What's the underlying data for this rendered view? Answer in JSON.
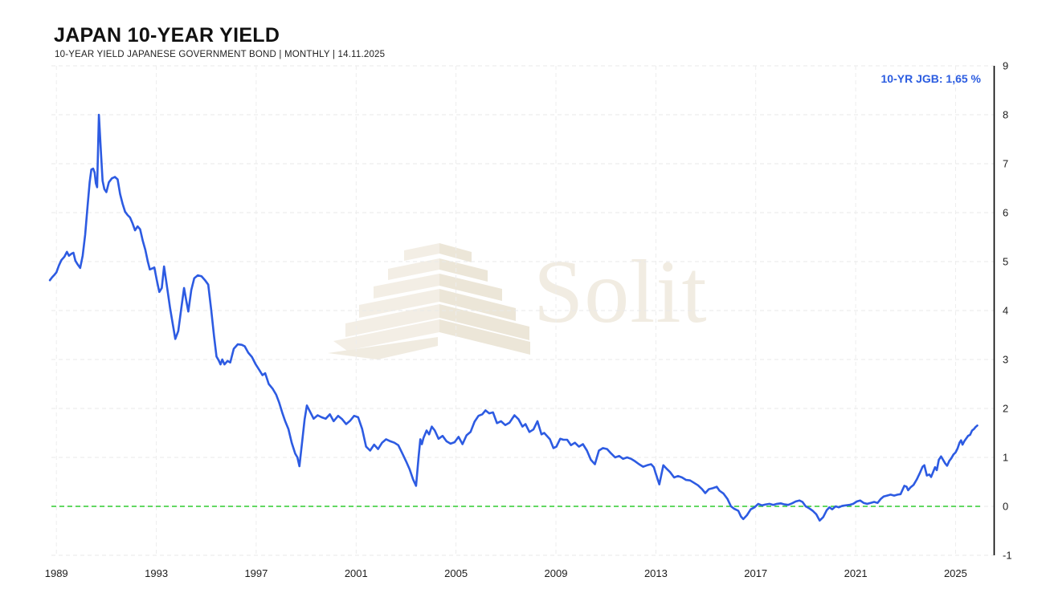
{
  "header": {
    "title": "JAPAN 10-YEAR YIELD",
    "subtitle": "10-YEAR YIELD JAPANESE GOVERNMENT BOND | MONTHLY | 14.11.2025"
  },
  "watermark": {
    "text": "Solit"
  },
  "chart": {
    "legend_label": "10-YR JGB: 1,65 %"
  },
  "chart_data": {
    "type": "line",
    "title": "JAPAN 10-YEAR YIELD",
    "subtitle": "10-YEAR YIELD JAPANESE GOVERNMENT BOND | MONTHLY | 14.11.2025",
    "xlabel": "",
    "ylabel": "",
    "x_ticks": [
      1989,
      1993,
      1997,
      2001,
      2005,
      2009,
      2013,
      2017,
      2021,
      2025
    ],
    "y_ticks": [
      9,
      8,
      7,
      6,
      5,
      4,
      3,
      2,
      1,
      0,
      -1
    ],
    "xlim": [
      1988.8,
      2026.53
    ],
    "ylim": [
      -1,
      9
    ],
    "grid": "dashed",
    "legend_position": "top-right",
    "zero_line": {
      "value": 0,
      "style": "dashed",
      "color": "#2ecc2e"
    },
    "series": [
      {
        "name": "10-YR JGB",
        "last_value": "1,65 %",
        "color": "#2d5be2",
        "points": [
          [
            1988.74,
            4.62
          ],
          [
            1988.83,
            4.68
          ],
          [
            1988.92,
            4.73
          ],
          [
            1989.0,
            4.78
          ],
          [
            1989.1,
            4.92
          ],
          [
            1989.2,
            5.03
          ],
          [
            1989.32,
            5.1
          ],
          [
            1989.42,
            5.2
          ],
          [
            1989.5,
            5.12
          ],
          [
            1989.6,
            5.16
          ],
          [
            1989.68,
            5.18
          ],
          [
            1989.76,
            5.02
          ],
          [
            1989.84,
            4.95
          ],
          [
            1989.95,
            4.87
          ],
          [
            1990.05,
            5.12
          ],
          [
            1990.15,
            5.55
          ],
          [
            1990.25,
            6.15
          ],
          [
            1990.33,
            6.62
          ],
          [
            1990.4,
            6.88
          ],
          [
            1990.47,
            6.9
          ],
          [
            1990.53,
            6.82
          ],
          [
            1990.58,
            6.6
          ],
          [
            1990.63,
            6.52
          ],
          [
            1990.7,
            8.0
          ],
          [
            1990.78,
            7.25
          ],
          [
            1990.85,
            6.65
          ],
          [
            1990.92,
            6.48
          ],
          [
            1991.0,
            6.42
          ],
          [
            1991.1,
            6.62
          ],
          [
            1991.22,
            6.7
          ],
          [
            1991.34,
            6.73
          ],
          [
            1991.45,
            6.68
          ],
          [
            1991.55,
            6.38
          ],
          [
            1991.65,
            6.18
          ],
          [
            1991.75,
            6.02
          ],
          [
            1991.85,
            5.95
          ],
          [
            1991.95,
            5.9
          ],
          [
            1992.05,
            5.78
          ],
          [
            1992.15,
            5.64
          ],
          [
            1992.25,
            5.72
          ],
          [
            1992.35,
            5.66
          ],
          [
            1992.46,
            5.42
          ],
          [
            1992.56,
            5.24
          ],
          [
            1992.66,
            5.0
          ],
          [
            1992.74,
            4.84
          ],
          [
            1992.84,
            4.86
          ],
          [
            1992.92,
            4.88
          ],
          [
            1993.02,
            4.62
          ],
          [
            1993.12,
            4.38
          ],
          [
            1993.22,
            4.46
          ],
          [
            1993.31,
            4.9
          ],
          [
            1993.42,
            4.52
          ],
          [
            1993.55,
            4.05
          ],
          [
            1993.66,
            3.72
          ],
          [
            1993.76,
            3.42
          ],
          [
            1993.88,
            3.58
          ],
          [
            1994.0,
            4.05
          ],
          [
            1994.11,
            4.46
          ],
          [
            1994.2,
            4.2
          ],
          [
            1994.28,
            3.98
          ],
          [
            1994.4,
            4.42
          ],
          [
            1994.52,
            4.66
          ],
          [
            1994.66,
            4.72
          ],
          [
            1994.81,
            4.7
          ],
          [
            1994.95,
            4.62
          ],
          [
            1995.08,
            4.53
          ],
          [
            1995.2,
            4.0
          ],
          [
            1995.31,
            3.48
          ],
          [
            1995.41,
            3.06
          ],
          [
            1995.5,
            2.98
          ],
          [
            1995.57,
            2.9
          ],
          [
            1995.64,
            3.0
          ],
          [
            1995.73,
            2.9
          ],
          [
            1995.85,
            2.97
          ],
          [
            1995.96,
            2.94
          ],
          [
            1996.1,
            3.22
          ],
          [
            1996.26,
            3.31
          ],
          [
            1996.42,
            3.3
          ],
          [
            1996.54,
            3.27
          ],
          [
            1996.68,
            3.14
          ],
          [
            1996.83,
            3.05
          ],
          [
            1996.98,
            2.9
          ],
          [
            1997.13,
            2.78
          ],
          [
            1997.25,
            2.68
          ],
          [
            1997.36,
            2.72
          ],
          [
            1997.5,
            2.5
          ],
          [
            1997.66,
            2.4
          ],
          [
            1997.8,
            2.28
          ],
          [
            1997.92,
            2.12
          ],
          [
            1998.05,
            1.9
          ],
          [
            1998.16,
            1.74
          ],
          [
            1998.29,
            1.58
          ],
          [
            1998.42,
            1.3
          ],
          [
            1998.56,
            1.08
          ],
          [
            1998.65,
            1.0
          ],
          [
            1998.73,
            0.82
          ],
          [
            1998.84,
            1.32
          ],
          [
            1998.94,
            1.78
          ],
          [
            1999.03,
            2.06
          ],
          [
            1999.16,
            1.93
          ],
          [
            1999.3,
            1.79
          ],
          [
            1999.46,
            1.86
          ],
          [
            1999.62,
            1.82
          ],
          [
            1999.78,
            1.79
          ],
          [
            1999.95,
            1.88
          ],
          [
            2000.1,
            1.74
          ],
          [
            2000.28,
            1.85
          ],
          [
            2000.44,
            1.78
          ],
          [
            2000.6,
            1.68
          ],
          [
            2000.76,
            1.75
          ],
          [
            2000.92,
            1.85
          ],
          [
            2001.08,
            1.82
          ],
          [
            2001.24,
            1.58
          ],
          [
            2001.4,
            1.22
          ],
          [
            2001.56,
            1.14
          ],
          [
            2001.72,
            1.26
          ],
          [
            2001.88,
            1.17
          ],
          [
            2002.04,
            1.3
          ],
          [
            2002.2,
            1.37
          ],
          [
            2002.37,
            1.33
          ],
          [
            2002.53,
            1.3
          ],
          [
            2002.69,
            1.25
          ],
          [
            2002.85,
            1.08
          ],
          [
            2003.0,
            0.92
          ],
          [
            2003.14,
            0.76
          ],
          [
            2003.28,
            0.55
          ],
          [
            2003.4,
            0.42
          ],
          [
            2003.5,
            1.0
          ],
          [
            2003.57,
            1.37
          ],
          [
            2003.63,
            1.27
          ],
          [
            2003.7,
            1.4
          ],
          [
            2003.82,
            1.55
          ],
          [
            2003.92,
            1.47
          ],
          [
            2004.03,
            1.63
          ],
          [
            2004.15,
            1.55
          ],
          [
            2004.3,
            1.38
          ],
          [
            2004.46,
            1.44
          ],
          [
            2004.62,
            1.33
          ],
          [
            2004.78,
            1.28
          ],
          [
            2004.94,
            1.31
          ],
          [
            2005.1,
            1.42
          ],
          [
            2005.26,
            1.27
          ],
          [
            2005.42,
            1.45
          ],
          [
            2005.58,
            1.52
          ],
          [
            2005.74,
            1.73
          ],
          [
            2005.9,
            1.85
          ],
          [
            2006.05,
            1.88
          ],
          [
            2006.18,
            1.96
          ],
          [
            2006.33,
            1.9
          ],
          [
            2006.48,
            1.92
          ],
          [
            2006.64,
            1.7
          ],
          [
            2006.8,
            1.74
          ],
          [
            2006.97,
            1.66
          ],
          [
            2007.14,
            1.71
          ],
          [
            2007.34,
            1.86
          ],
          [
            2007.5,
            1.78
          ],
          [
            2007.66,
            1.63
          ],
          [
            2007.78,
            1.68
          ],
          [
            2007.94,
            1.52
          ],
          [
            2008.1,
            1.57
          ],
          [
            2008.26,
            1.74
          ],
          [
            2008.42,
            1.47
          ],
          [
            2008.53,
            1.5
          ],
          [
            2008.64,
            1.44
          ],
          [
            2008.76,
            1.37
          ],
          [
            2008.9,
            1.19
          ],
          [
            2009.02,
            1.22
          ],
          [
            2009.17,
            1.38
          ],
          [
            2009.3,
            1.36
          ],
          [
            2009.45,
            1.36
          ],
          [
            2009.6,
            1.25
          ],
          [
            2009.76,
            1.3
          ],
          [
            2009.92,
            1.22
          ],
          [
            2010.08,
            1.27
          ],
          [
            2010.24,
            1.14
          ],
          [
            2010.4,
            0.95
          ],
          [
            2010.56,
            0.86
          ],
          [
            2010.72,
            1.14
          ],
          [
            2010.88,
            1.19
          ],
          [
            2011.05,
            1.17
          ],
          [
            2011.21,
            1.08
          ],
          [
            2011.37,
            1.0
          ],
          [
            2011.53,
            1.03
          ],
          [
            2011.69,
            0.97
          ],
          [
            2011.85,
            1.0
          ],
          [
            2012.01,
            0.97
          ],
          [
            2012.17,
            0.92
          ],
          [
            2012.33,
            0.86
          ],
          [
            2012.49,
            0.81
          ],
          [
            2012.65,
            0.84
          ],
          [
            2012.81,
            0.86
          ],
          [
            2012.92,
            0.8
          ],
          [
            2012.98,
            0.7
          ],
          [
            2013.14,
            0.45
          ],
          [
            2013.3,
            0.84
          ],
          [
            2013.41,
            0.78
          ],
          [
            2013.57,
            0.7
          ],
          [
            2013.73,
            0.59
          ],
          [
            2013.89,
            0.62
          ],
          [
            2014.05,
            0.59
          ],
          [
            2014.21,
            0.54
          ],
          [
            2014.37,
            0.53
          ],
          [
            2014.53,
            0.48
          ],
          [
            2014.69,
            0.43
          ],
          [
            2014.85,
            0.35
          ],
          [
            2014.98,
            0.27
          ],
          [
            2015.12,
            0.35
          ],
          [
            2015.28,
            0.37
          ],
          [
            2015.44,
            0.4
          ],
          [
            2015.55,
            0.32
          ],
          [
            2015.71,
            0.26
          ],
          [
            2015.87,
            0.15
          ],
          [
            2016.01,
            0.0
          ],
          [
            2016.14,
            -0.05
          ],
          [
            2016.3,
            -0.09
          ],
          [
            2016.41,
            -0.21
          ],
          [
            2016.5,
            -0.26
          ],
          [
            2016.65,
            -0.18
          ],
          [
            2016.8,
            -0.06
          ],
          [
            2016.95,
            -0.02
          ],
          [
            2017.1,
            0.05
          ],
          [
            2017.25,
            0.02
          ],
          [
            2017.4,
            0.04
          ],
          [
            2017.55,
            0.05
          ],
          [
            2017.7,
            0.03
          ],
          [
            2017.85,
            0.05
          ],
          [
            2018.0,
            0.06
          ],
          [
            2018.15,
            0.04
          ],
          [
            2018.3,
            0.03
          ],
          [
            2018.45,
            0.06
          ],
          [
            2018.6,
            0.1
          ],
          [
            2018.75,
            0.12
          ],
          [
            2018.87,
            0.09
          ],
          [
            2019.0,
            0.0
          ],
          [
            2019.14,
            -0.04
          ],
          [
            2019.28,
            -0.09
          ],
          [
            2019.42,
            -0.16
          ],
          [
            2019.56,
            -0.29
          ],
          [
            2019.7,
            -0.22
          ],
          [
            2019.84,
            -0.08
          ],
          [
            2019.95,
            -0.02
          ],
          [
            2020.06,
            -0.06
          ],
          [
            2020.2,
            0.0
          ],
          [
            2020.33,
            -0.02
          ],
          [
            2020.46,
            0.01
          ],
          [
            2020.6,
            0.02
          ],
          [
            2020.75,
            0.03
          ],
          [
            2020.9,
            0.05
          ],
          [
            2021.05,
            0.1
          ],
          [
            2021.18,
            0.12
          ],
          [
            2021.32,
            0.07
          ],
          [
            2021.46,
            0.05
          ],
          [
            2021.6,
            0.07
          ],
          [
            2021.74,
            0.09
          ],
          [
            2021.88,
            0.07
          ],
          [
            2022.0,
            0.15
          ],
          [
            2022.12,
            0.2
          ],
          [
            2022.26,
            0.22
          ],
          [
            2022.4,
            0.24
          ],
          [
            2022.54,
            0.22
          ],
          [
            2022.68,
            0.24
          ],
          [
            2022.8,
            0.25
          ],
          [
            2022.95,
            0.42
          ],
          [
            2023.04,
            0.4
          ],
          [
            2023.1,
            0.33
          ],
          [
            2023.2,
            0.39
          ],
          [
            2023.32,
            0.44
          ],
          [
            2023.45,
            0.55
          ],
          [
            2023.56,
            0.67
          ],
          [
            2023.68,
            0.81
          ],
          [
            2023.75,
            0.84
          ],
          [
            2023.85,
            0.63
          ],
          [
            2023.95,
            0.65
          ],
          [
            2024.02,
            0.6
          ],
          [
            2024.1,
            0.7
          ],
          [
            2024.18,
            0.8
          ],
          [
            2024.25,
            0.74
          ],
          [
            2024.33,
            0.95
          ],
          [
            2024.42,
            1.02
          ],
          [
            2024.5,
            0.95
          ],
          [
            2024.58,
            0.88
          ],
          [
            2024.66,
            0.83
          ],
          [
            2024.75,
            0.93
          ],
          [
            2024.83,
            0.98
          ],
          [
            2024.92,
            1.06
          ],
          [
            2025.0,
            1.1
          ],
          [
            2025.08,
            1.18
          ],
          [
            2025.16,
            1.3
          ],
          [
            2025.22,
            1.35
          ],
          [
            2025.28,
            1.26
          ],
          [
            2025.35,
            1.33
          ],
          [
            2025.42,
            1.38
          ],
          [
            2025.5,
            1.44
          ],
          [
            2025.58,
            1.46
          ],
          [
            2025.66,
            1.55
          ],
          [
            2025.74,
            1.58
          ],
          [
            2025.8,
            1.62
          ],
          [
            2025.87,
            1.65
          ]
        ]
      }
    ]
  }
}
